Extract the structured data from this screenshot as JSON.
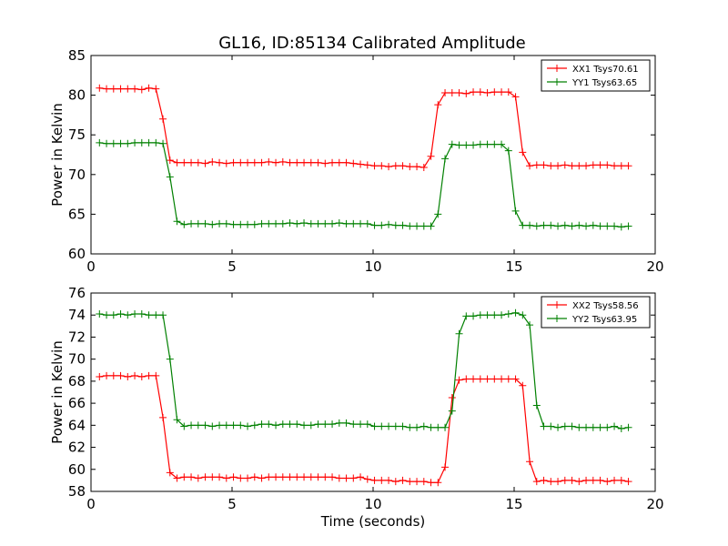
{
  "title": "GL16, ID:85134 Calibrated Amplitude",
  "chart_data": [
    {
      "type": "line",
      "xlabel": "",
      "ylabel": "Power in Kelvin",
      "xlim": [
        0,
        20
      ],
      "ylim": [
        60,
        85
      ],
      "xticks": [
        0,
        5,
        10,
        15,
        20
      ],
      "yticks": [
        60,
        65,
        70,
        75,
        80,
        85
      ],
      "legend_position": "top-right",
      "x": [
        0.3,
        0.55,
        0.8,
        1.05,
        1.3,
        1.55,
        1.8,
        2.05,
        2.3,
        2.55,
        2.8,
        3.05,
        3.3,
        3.55,
        3.8,
        4.05,
        4.3,
        4.55,
        4.8,
        5.05,
        5.3,
        5.55,
        5.8,
        6.05,
        6.3,
        6.55,
        6.8,
        7.05,
        7.3,
        7.55,
        7.8,
        8.05,
        8.3,
        8.55,
        8.8,
        9.05,
        9.3,
        9.55,
        9.8,
        10.05,
        10.3,
        10.55,
        10.8,
        11.05,
        11.3,
        11.55,
        11.8,
        12.05,
        12.3,
        12.55,
        12.8,
        13.05,
        13.3,
        13.55,
        13.8,
        14.05,
        14.3,
        14.55,
        14.8,
        15.05,
        15.3,
        15.55,
        15.8,
        16.05,
        16.3,
        16.55,
        16.8,
        17.05,
        17.3,
        17.55,
        17.8,
        18.05,
        18.3,
        18.55,
        18.8,
        19.05
      ],
      "series": [
        {
          "name": "XX1 Tsys70.61",
          "color": "#ff0000",
          "values": [
            80.9,
            80.8,
            80.8,
            80.8,
            80.8,
            80.8,
            80.7,
            80.9,
            80.8,
            77.0,
            71.8,
            71.5,
            71.5,
            71.5,
            71.5,
            71.4,
            71.6,
            71.5,
            71.4,
            71.5,
            71.5,
            71.5,
            71.5,
            71.5,
            71.6,
            71.5,
            71.6,
            71.5,
            71.5,
            71.5,
            71.5,
            71.5,
            71.4,
            71.5,
            71.5,
            71.5,
            71.4,
            71.3,
            71.2,
            71.1,
            71.1,
            71.0,
            71.1,
            71.1,
            71.0,
            71.0,
            70.9,
            72.3,
            78.8,
            80.3,
            80.3,
            80.3,
            80.2,
            80.4,
            80.4,
            80.3,
            80.4,
            80.4,
            80.4,
            79.8,
            72.8,
            71.1,
            71.2,
            71.2,
            71.1,
            71.1,
            71.2,
            71.1,
            71.1,
            71.1,
            71.2,
            71.2,
            71.2,
            71.1,
            71.1,
            71.1
          ]
        },
        {
          "name": "YY1 Tsys63.65",
          "color": "#008000",
          "values": [
            74.0,
            73.9,
            73.9,
            73.9,
            73.9,
            74.0,
            74.0,
            74.0,
            74.0,
            73.9,
            69.7,
            64.1,
            63.7,
            63.8,
            63.8,
            63.8,
            63.7,
            63.8,
            63.8,
            63.7,
            63.7,
            63.7,
            63.7,
            63.8,
            63.8,
            63.8,
            63.8,
            63.9,
            63.8,
            63.9,
            63.8,
            63.8,
            63.8,
            63.8,
            63.9,
            63.8,
            63.8,
            63.8,
            63.8,
            63.6,
            63.6,
            63.7,
            63.6,
            63.6,
            63.5,
            63.5,
            63.5,
            63.5,
            65.0,
            72.0,
            73.8,
            73.7,
            73.7,
            73.7,
            73.8,
            73.8,
            73.8,
            73.8,
            73.0,
            65.4,
            63.6,
            63.6,
            63.5,
            63.6,
            63.6,
            63.5,
            63.6,
            63.5,
            63.6,
            63.5,
            63.6,
            63.5,
            63.5,
            63.5,
            63.4,
            63.5
          ]
        }
      ]
    },
    {
      "type": "line",
      "xlabel": "Time (seconds)",
      "ylabel": "Power in Kelvin",
      "xlim": [
        0,
        20
      ],
      "ylim": [
        58,
        76
      ],
      "xticks": [
        0,
        5,
        10,
        15,
        20
      ],
      "yticks": [
        58,
        60,
        62,
        64,
        66,
        68,
        70,
        72,
        74,
        76
      ],
      "legend_position": "top-right",
      "x": [
        0.3,
        0.55,
        0.8,
        1.05,
        1.3,
        1.55,
        1.8,
        2.05,
        2.3,
        2.55,
        2.8,
        3.05,
        3.3,
        3.55,
        3.8,
        4.05,
        4.3,
        4.55,
        4.8,
        5.05,
        5.3,
        5.55,
        5.8,
        6.05,
        6.3,
        6.55,
        6.8,
        7.05,
        7.3,
        7.55,
        7.8,
        8.05,
        8.3,
        8.55,
        8.8,
        9.05,
        9.3,
        9.55,
        9.8,
        10.05,
        10.3,
        10.55,
        10.8,
        11.05,
        11.3,
        11.55,
        11.8,
        12.05,
        12.3,
        12.55,
        12.8,
        13.05,
        13.3,
        13.55,
        13.8,
        14.05,
        14.3,
        14.55,
        14.8,
        15.05,
        15.3,
        15.55,
        15.8,
        16.05,
        16.3,
        16.55,
        16.8,
        17.05,
        17.3,
        17.55,
        17.8,
        18.05,
        18.3,
        18.55,
        18.8,
        19.05
      ],
      "series": [
        {
          "name": "XX2 Tsys58.56",
          "color": "#ff0000",
          "values": [
            68.4,
            68.5,
            68.5,
            68.5,
            68.4,
            68.5,
            68.4,
            68.5,
            68.5,
            64.7,
            59.7,
            59.2,
            59.3,
            59.3,
            59.2,
            59.3,
            59.3,
            59.3,
            59.2,
            59.3,
            59.2,
            59.2,
            59.3,
            59.2,
            59.3,
            59.3,
            59.3,
            59.3,
            59.3,
            59.3,
            59.3,
            59.3,
            59.3,
            59.3,
            59.2,
            59.2,
            59.2,
            59.3,
            59.1,
            59.0,
            59.0,
            59.0,
            58.9,
            59.0,
            58.9,
            58.9,
            58.9,
            58.8,
            58.8,
            60.2,
            66.5,
            68.1,
            68.2,
            68.2,
            68.2,
            68.2,
            68.2,
            68.2,
            68.2,
            68.2,
            67.6,
            60.7,
            58.9,
            59.0,
            58.9,
            58.9,
            59.0,
            59.0,
            58.9,
            59.0,
            59.0,
            59.0,
            58.9,
            59.0,
            59.0,
            58.9
          ]
        },
        {
          "name": "YY2 Tsys63.95",
          "color": "#008000",
          "values": [
            74.1,
            74.0,
            74.0,
            74.1,
            74.0,
            74.1,
            74.1,
            74.0,
            74.0,
            74.0,
            70.0,
            64.5,
            63.9,
            64.0,
            64.0,
            64.0,
            63.9,
            64.0,
            64.0,
            64.0,
            64.0,
            63.9,
            64.0,
            64.1,
            64.1,
            64.0,
            64.1,
            64.1,
            64.1,
            64.0,
            64.0,
            64.1,
            64.1,
            64.1,
            64.2,
            64.2,
            64.1,
            64.1,
            64.1,
            63.9,
            63.9,
            63.9,
            63.9,
            63.9,
            63.8,
            63.8,
            63.9,
            63.8,
            63.8,
            63.8,
            65.3,
            72.3,
            73.9,
            73.9,
            74.0,
            74.0,
            74.0,
            74.0,
            74.1,
            74.2,
            74.0,
            73.1,
            65.8,
            63.9,
            63.9,
            63.8,
            63.9,
            63.9,
            63.8,
            63.8,
            63.8,
            63.8,
            63.8,
            63.9,
            63.7,
            63.8
          ]
        }
      ]
    }
  ]
}
